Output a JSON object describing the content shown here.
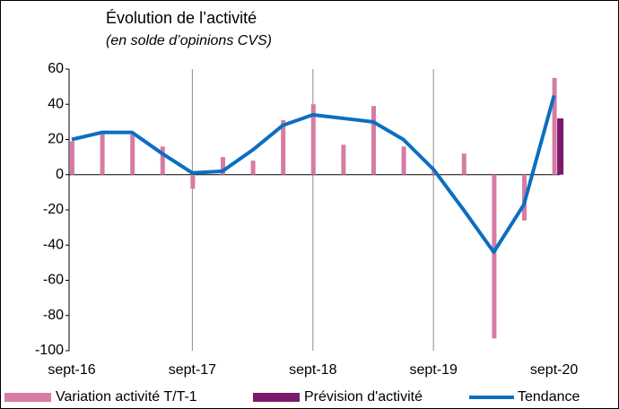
{
  "chart_data": {
    "type": "bar",
    "title": "Évolution de l’activité",
    "subtitle": "(en solde d’opinions CVS)",
    "categories": [
      "sept-16",
      null,
      null,
      null,
      "sept-17",
      null,
      null,
      null,
      "sept-18",
      null,
      null,
      null,
      "sept-19",
      null,
      null,
      null,
      "sept-20"
    ],
    "series": [
      {
        "name": "Variation activité T/T-1",
        "type": "bar",
        "color": "#d77ba3",
        "values": [
          19,
          23,
          23,
          16,
          -8,
          10,
          8,
          31,
          40,
          17,
          39,
          16,
          2,
          12,
          -93,
          -26,
          55
        ]
      },
      {
        "name": "Prévision d'activité",
        "type": "bar",
        "color": "#7b1a6e",
        "values": [
          null,
          null,
          null,
          null,
          null,
          null,
          null,
          null,
          null,
          null,
          null,
          null,
          null,
          null,
          null,
          null,
          32
        ]
      },
      {
        "name": "Tendance",
        "type": "line",
        "color": "#0a6fc2",
        "values": [
          20,
          24,
          24,
          12,
          1,
          2,
          14,
          28,
          34,
          32,
          30,
          20,
          3,
          -20,
          -44,
          -17,
          45
        ]
      }
    ],
    "ylim": [
      -100,
      60
    ],
    "yticks": [
      -100,
      -80,
      -60,
      -40,
      -20,
      0,
      20,
      40,
      60
    ],
    "grid": false,
    "legend": "bottom"
  }
}
